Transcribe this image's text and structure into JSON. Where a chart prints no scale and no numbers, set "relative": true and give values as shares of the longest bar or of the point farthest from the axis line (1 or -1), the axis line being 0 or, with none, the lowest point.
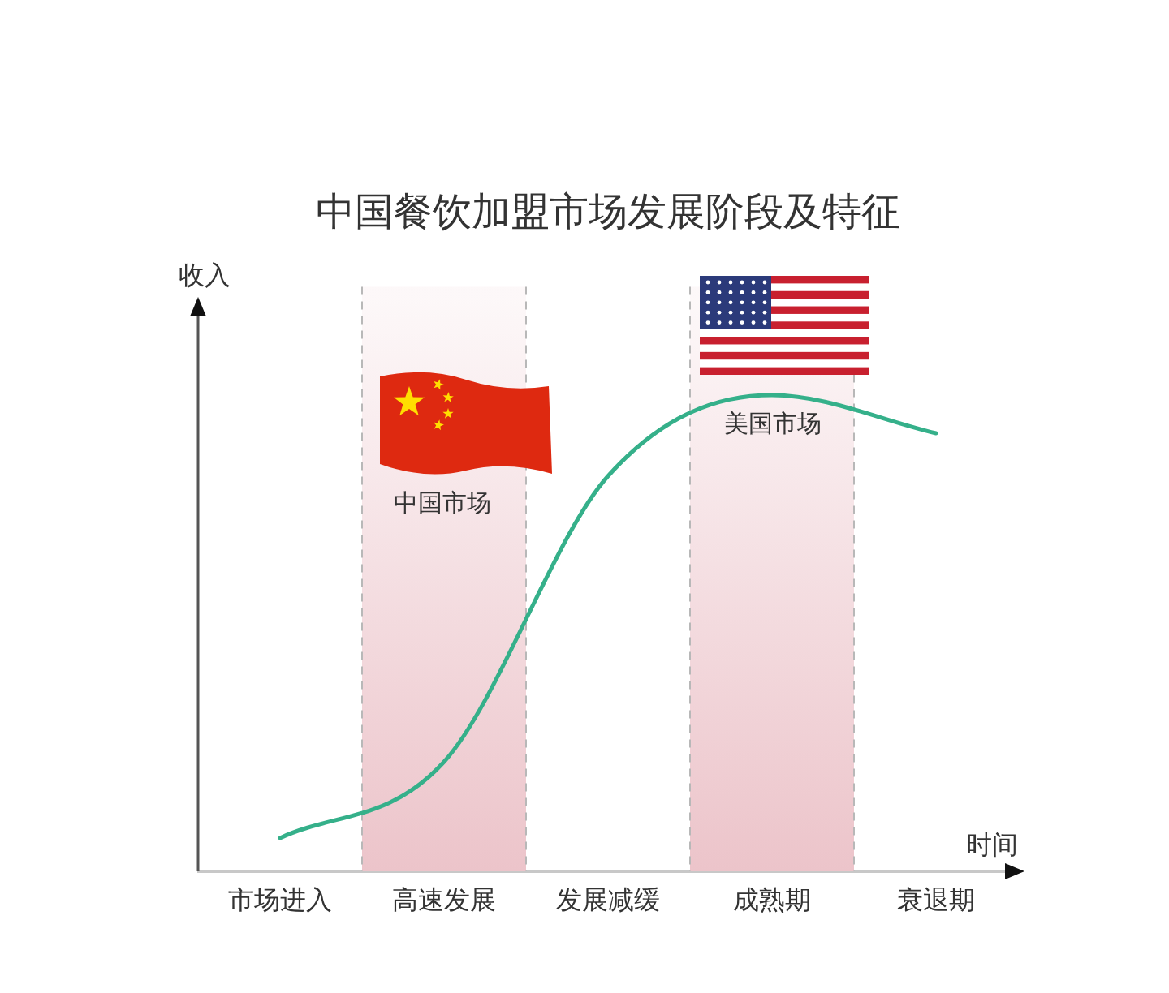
{
  "chart_data": {
    "type": "line",
    "title": "中国餐饮加盟市场发展阶段及特征",
    "xlabel": "时间",
    "ylabel": "收入",
    "relative": true,
    "marker": "none",
    "line_style": "solid",
    "categories": [
      "市场进入",
      "高速发展",
      "发展减缓",
      "成熟期",
      "衰退期"
    ],
    "series": [
      {
        "color": "#35b08a",
        "values": [
          0.07,
          0.23,
          0.83,
          1.0,
          0.92
        ]
      }
    ],
    "bands": [
      {
        "axis": "x",
        "from": "高速发展",
        "to": "高速发展",
        "color": "#ecc4ca"
      },
      {
        "axis": "x",
        "from": "成熟期",
        "to": "成熟期",
        "color": "#ecc4ca"
      }
    ],
    "annotations": [
      "中国市场",
      "美国市场"
    ]
  }
}
